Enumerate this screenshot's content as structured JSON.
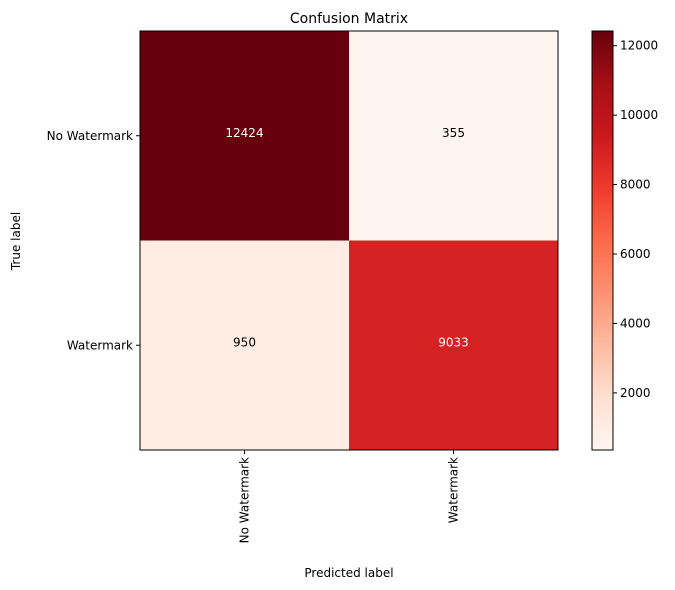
{
  "chart_data": {
    "type": "heatmap",
    "title": "Confusion Matrix",
    "xlabel": "Predicted label",
    "ylabel": "True label",
    "x_categories": [
      "No Watermark",
      "Watermark"
    ],
    "y_categories": [
      "No Watermark",
      "Watermark"
    ],
    "values": [
      [
        12424,
        355
      ],
      [
        950,
        9033
      ]
    ],
    "colormap": "Reds",
    "color_min": 355,
    "color_max": 12424,
    "colorbar_ticks": [
      2000,
      4000,
      6000,
      8000,
      10000,
      12000
    ],
    "text_color_light": "#ffffff",
    "text_color_dark": "#000000"
  }
}
